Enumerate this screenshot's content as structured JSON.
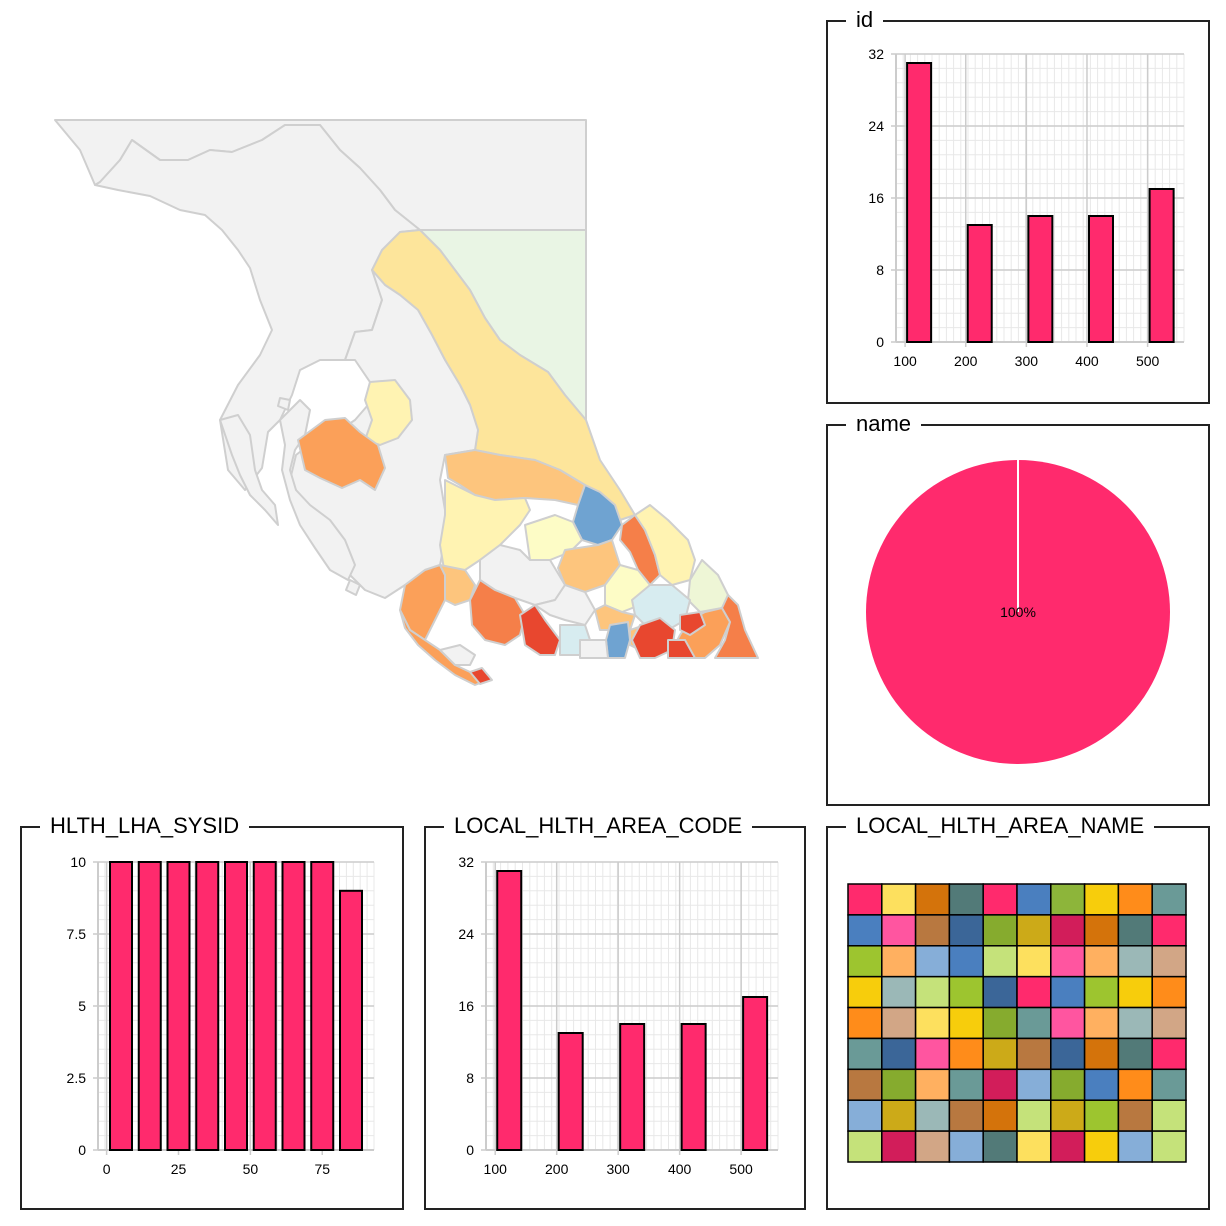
{
  "panels": {
    "id": "id",
    "name": "name",
    "sysid": "HLTH_LHA_SYSID",
    "code": "LOCAL_HLTH_AREA_CODE",
    "area_name": "LOCAL_HLTH_AREA_NAME"
  },
  "colors": {
    "bar": "#ff2a6d",
    "bar_stroke": "#000000",
    "grid_major": "#cccccc",
    "grid_minor": "#e8e8e8"
  },
  "chart_data": [
    {
      "type": "bar",
      "title": "id",
      "x": [
        100,
        200,
        300,
        400,
        500
      ],
      "values": [
        31,
        13,
        14,
        14,
        17
      ],
      "xlim": [
        85,
        560
      ],
      "ylim": [
        0,
        32
      ],
      "xticks": [
        100,
        200,
        300,
        400,
        500
      ],
      "yticks": [
        0,
        8,
        16,
        24,
        32
      ],
      "grid": true
    },
    {
      "type": "pie",
      "title": "name",
      "slices": [
        {
          "label": "100%",
          "value": 100
        }
      ]
    },
    {
      "type": "bar",
      "title": "HLTH_LHA_SYSID",
      "x": [
        5,
        15,
        25,
        35,
        45,
        55,
        65,
        75,
        85
      ],
      "values": [
        10,
        10,
        10,
        10,
        10,
        10,
        10,
        10,
        9
      ],
      "xlim": [
        -3,
        93
      ],
      "ylim": [
        0,
        10
      ],
      "xticks": [
        0,
        25,
        50,
        75
      ],
      "yticks": [
        0,
        2.5,
        5,
        7.5,
        10
      ],
      "grid": true
    },
    {
      "type": "bar",
      "title": "LOCAL_HLTH_AREA_CODE",
      "x": [
        100,
        200,
        300,
        400,
        500
      ],
      "values": [
        31,
        13,
        14,
        14,
        17
      ],
      "xlim": [
        85,
        560
      ],
      "ylim": [
        0,
        32
      ],
      "xticks": [
        100,
        200,
        300,
        400,
        500
      ],
      "yticks": [
        0,
        8,
        16,
        24,
        32
      ],
      "grid": true
    },
    {
      "type": "heatmap",
      "title": "LOCAL_HLTH_AREA_NAME",
      "rows": [
        [
          "#ff2a6d",
          "#fde05e",
          "#d4730b",
          "#527a78",
          "#ff2a6d",
          "#4a7fbf",
          "#8db53a",
          "#f7cd0c",
          "#ff8c1a",
          "#6a9a97"
        ],
        [
          "#4a7fbf",
          "#ff55a0",
          "#b87840",
          "#3b6698",
          "#86ab2e",
          "#ccaa18",
          "#d21d5a",
          "#d4730b",
          "#527a78",
          "#ff2a6d"
        ],
        [
          "#9dc52f",
          "#ffb060",
          "#86aed8",
          "#4a7fbf",
          "#c5e27a",
          "#fde05e",
          "#ff55a0",
          "#ffb060",
          "#9bb8b7",
          "#d2a686"
        ],
        [
          "#f7cd0c",
          "#9bb8b7",
          "#c5e27a",
          "#9dc52f",
          "#3b6698",
          "#ff2a6d",
          "#4a7fbf",
          "#9dc52f",
          "#f7cd0c",
          "#ff8c1a"
        ],
        [
          "#ff8c1a",
          "#d2a686",
          "#fde05e",
          "#f7cd0c",
          "#86ab2e",
          "#6a9a97",
          "#ff55a0",
          "#ffb060",
          "#9bb8b7",
          "#d2a686"
        ],
        [
          "#6a9a97",
          "#3b6698",
          "#ff55a0",
          "#ff8c1a",
          "#ccaa18",
          "#b87840",
          "#3b6698",
          "#d4730b",
          "#527a78",
          "#ff2a6d"
        ],
        [
          "#b87840",
          "#86ab2e",
          "#ffb060",
          "#6a9a97",
          "#d21d5a",
          "#86aed8",
          "#86ab2e",
          "#4a7fbf",
          "#ff8c1a",
          "#6a9a97"
        ],
        [
          "#86aed8",
          "#ccaa18",
          "#9bb8b7",
          "#b87840",
          "#d4730b",
          "#c5e27a",
          "#ccaa18",
          "#9dc52f",
          "#b87840",
          "#c5e27a"
        ],
        [
          "#c5e27a",
          "#d21d5a",
          "#d2a686",
          "#86aed8",
          "#527a78",
          "#fde05e",
          "#d21d5a",
          "#f7cd0c",
          "#86aed8",
          "#c5e27a"
        ]
      ]
    }
  ],
  "map": {
    "region_colors": {
      "none": "#f2f2f2",
      "stroke": "#cfcfcf",
      "green": "#e9f5e4",
      "pale_yellow": "#fde59b",
      "light_yellow": "#fff3b2",
      "cream": "#fdfcc6",
      "peach": "#fdc57d",
      "orange": "#fba059",
      "dark_orange": "#f57f49",
      "red": "#e8472f",
      "light_blue": "#d7ecf0",
      "blue": "#6fa3d1",
      "pale_green": "#eef6d6"
    }
  }
}
